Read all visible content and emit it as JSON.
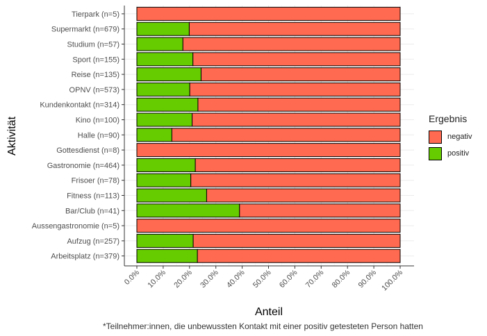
{
  "chart_data": {
    "type": "bar",
    "orientation": "horizontal",
    "stacked": true,
    "xlabel": "Anteil",
    "ylabel": "Aktivität",
    "xlim": [
      0,
      1
    ],
    "x_ticks": [
      "0.0%",
      "10.0%",
      "20.0%",
      "30.0%",
      "40.0%",
      "50.0%",
      "60.0%",
      "70.0%",
      "80.0%",
      "90.0%",
      "100.0%"
    ],
    "categories": [
      "Tierpark (n=5)",
      "Supermarkt (n=679)",
      "Studium (n=57)",
      "Sport (n=155)",
      "Reise (n=135)",
      "OPNV (n=573)",
      "Kundenkontakt (n=314)",
      "Kino (n=100)",
      "Halle (n=90)",
      "Gottesdienst (n=8)",
      "Gastronomie (n=464)",
      "Frisoer (n=78)",
      "Fitness (n=113)",
      "Bar/Club (n=41)",
      "Aussengastronomie (n=5)",
      "Aufzug (n=257)",
      "Arbeitsplatz (n=379)"
    ],
    "series": [
      {
        "name": "positiv",
        "color": "#66CC00",
        "values": [
          0.0,
          0.199,
          0.175,
          0.213,
          0.244,
          0.201,
          0.232,
          0.21,
          0.133,
          0.0,
          0.222,
          0.205,
          0.265,
          0.39,
          0.0,
          0.214,
          0.23
        ]
      },
      {
        "name": "negativ",
        "color": "#FF6A50",
        "values": [
          1.0,
          0.801,
          0.825,
          0.787,
          0.756,
          0.799,
          0.768,
          0.79,
          0.867,
          1.0,
          0.778,
          0.795,
          0.735,
          0.61,
          1.0,
          0.786,
          0.77
        ]
      }
    ],
    "legend": {
      "title": "Ergebnis",
      "items": [
        "negativ",
        "positiv"
      ],
      "position": "right"
    },
    "grid": true
  },
  "caption": "*Teilnehmer:innen, die unbewussten Kontakt mit einer positiv getesteten Person hatten"
}
